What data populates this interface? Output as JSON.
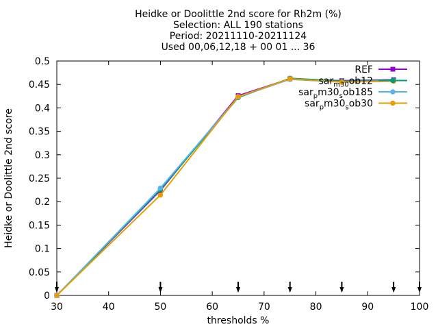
{
  "chart_data": {
    "type": "line",
    "title_lines": [
      "Heidke or Doolittle 2nd score  for Rh2m (%)",
      "Selection: ALL    190 stations",
      "Period: 20211110-20211124",
      "Used 00,06,12,18 + 00 01 ... 36"
    ],
    "xlabel": "thresholds %",
    "ylabel": "Heidke or Doolittle 2nd score",
    "xlim": [
      30,
      100
    ],
    "ylim": [
      0,
      0.5
    ],
    "x_ticks": [
      "30",
      "40",
      "50",
      "60",
      "70",
      "80",
      "90",
      "100"
    ],
    "y_ticks": [
      "0",
      "0.05",
      "0.1",
      "0.15",
      "0.2",
      "0.25",
      "0.3",
      "0.35",
      "0.4",
      "0.45",
      "0.5"
    ],
    "grid": false,
    "legend_position": "top-right",
    "threshold_arrows_x": [
      30,
      50,
      65,
      75,
      85,
      95,
      100
    ],
    "series": [
      {
        "name": "REF",
        "legend_parts": [
          {
            "t": "REF",
            "sub": false
          }
        ],
        "color": "#9400d3",
        "marker": "square",
        "x": [
          30,
          50,
          65,
          75,
          85,
          95
        ],
        "y": [
          0.0,
          0.224,
          0.426,
          0.462,
          0.458,
          0.46
        ]
      },
      {
        "name": "sar_m30_ob12",
        "legend_parts": [
          {
            "t": "sar",
            "sub": false
          },
          {
            "t": "m30",
            "sub": true
          },
          {
            "t": "ob12",
            "sub": false
          }
        ],
        "color": "#009e73",
        "marker": "circle",
        "x": [
          30,
          50,
          65,
          75,
          85,
          95
        ],
        "y": [
          0.0,
          0.226,
          0.422,
          0.463,
          0.457,
          0.459
        ]
      },
      {
        "name": "sar_p m30_s ob185",
        "legend_parts": [
          {
            "t": "sar",
            "sub": false
          },
          {
            "t": "p",
            "sub": true
          },
          {
            "t": "m30",
            "sub": false
          },
          {
            "t": "s",
            "sub": true
          },
          {
            "t": "ob185",
            "sub": false
          }
        ],
        "color": "#56b4e9",
        "marker": "circle",
        "x": [
          30,
          50,
          65,
          75,
          85,
          95
        ],
        "y": [
          0.0,
          0.229,
          0.423,
          0.461,
          0.455,
          0.458
        ]
      },
      {
        "name": "sar_p m30_s ob30",
        "legend_parts": [
          {
            "t": "sar",
            "sub": false
          },
          {
            "t": "p",
            "sub": true
          },
          {
            "t": "m30",
            "sub": false
          },
          {
            "t": "s",
            "sub": true
          },
          {
            "t": "ob30",
            "sub": false
          }
        ],
        "color": "#e69f00",
        "marker": "circle",
        "x": [
          30,
          50,
          65,
          75,
          85,
          95
        ],
        "y": [
          0.0,
          0.214,
          0.424,
          0.462,
          0.455,
          0.457
        ]
      }
    ]
  }
}
